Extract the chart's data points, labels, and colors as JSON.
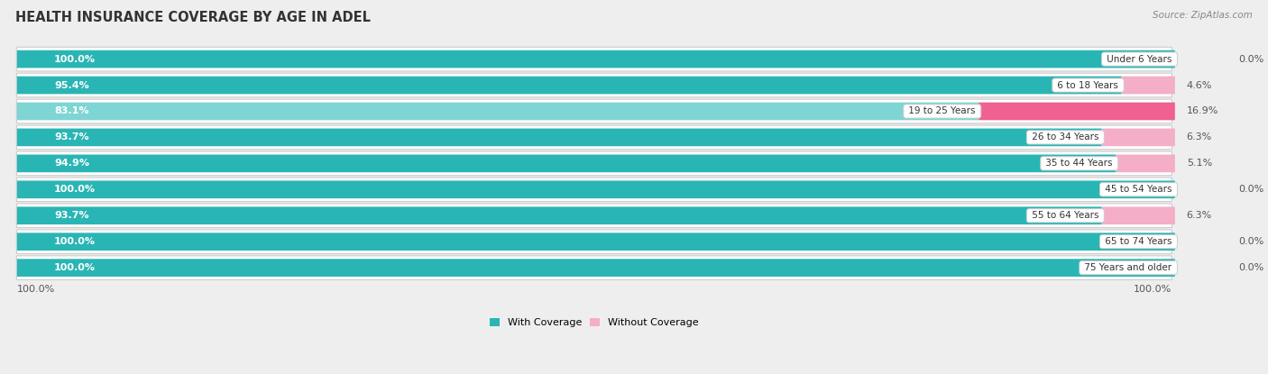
{
  "title": "HEALTH INSURANCE COVERAGE BY AGE IN ADEL",
  "source": "Source: ZipAtlas.com",
  "categories": [
    "Under 6 Years",
    "6 to 18 Years",
    "19 to 25 Years",
    "26 to 34 Years",
    "35 to 44 Years",
    "45 to 54 Years",
    "55 to 64 Years",
    "65 to 74 Years",
    "75 Years and older"
  ],
  "with_coverage": [
    100.0,
    95.4,
    83.1,
    93.7,
    94.9,
    100.0,
    93.7,
    100.0,
    100.0
  ],
  "without_coverage": [
    0.0,
    4.6,
    16.9,
    6.3,
    5.1,
    0.0,
    6.3,
    0.0,
    0.0
  ],
  "color_with_dark": "#2ab5b5",
  "color_with_light": "#7fd4d4",
  "color_without_light": "#f4aec8",
  "color_without_dark": "#f06090",
  "bg_color": "#eeeeee",
  "bar_bg": "#e8e8e8",
  "row_bg": "#f8f8f8",
  "title_fontsize": 10.5,
  "source_fontsize": 7.5,
  "label_fontsize": 8.0,
  "tick_fontsize": 8.0,
  "bar_height": 0.68,
  "legend_label_with": "With Coverage",
  "legend_label_without": "Without Coverage",
  "x_left_label": "100.0%",
  "x_right_label": "100.0%"
}
